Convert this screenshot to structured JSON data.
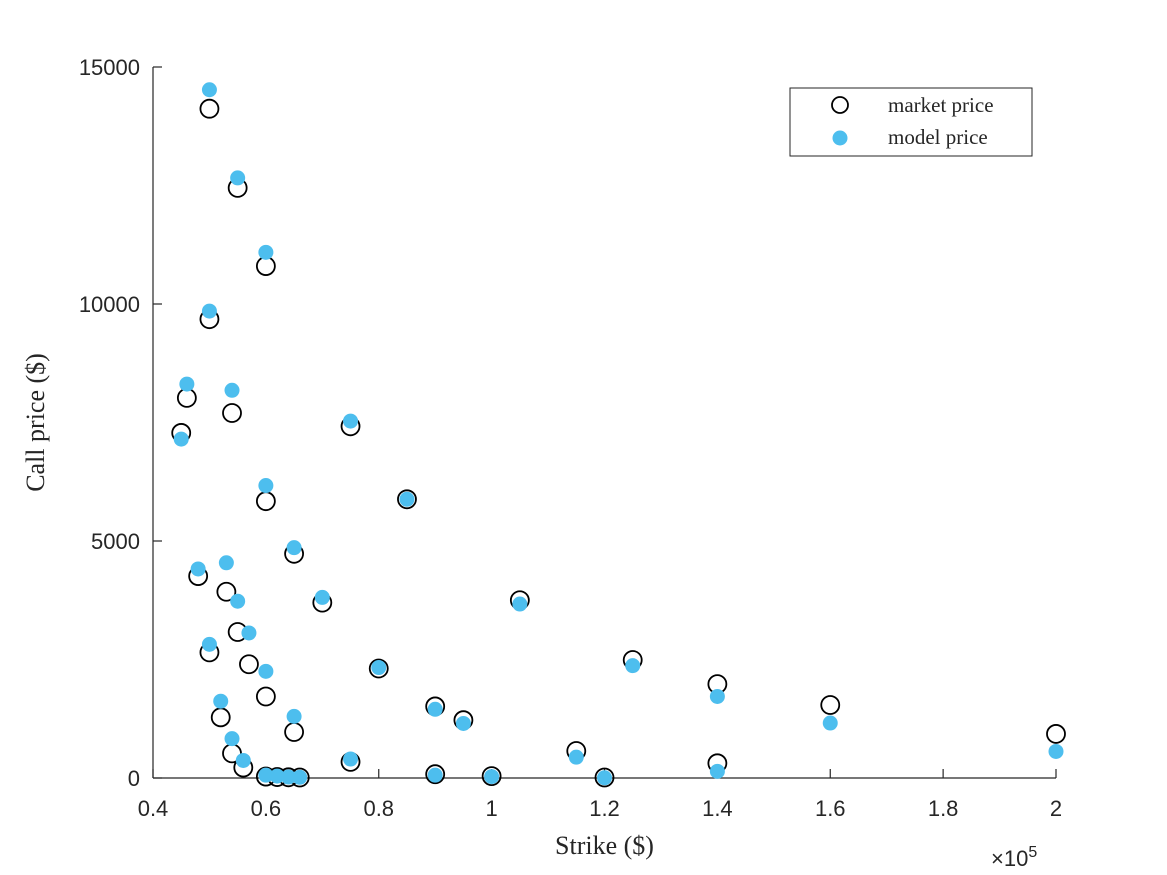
{
  "chart_data": {
    "type": "scatter",
    "title": "",
    "xlabel": "Strike ($)",
    "ylabel": "Call price ($)",
    "x_exponent_label": "×10^5",
    "x_exponent_base": "×10",
    "x_exponent_power": "5",
    "xlim": [
      0.4,
      2.0
    ],
    "ylim": [
      0,
      15000
    ],
    "x_ticks": [
      0.4,
      0.6,
      0.8,
      1.0,
      1.2,
      1.4,
      1.6,
      1.8,
      2.0
    ],
    "x_tick_labels": [
      "0.4",
      "0.6",
      "0.8",
      "1",
      "1.2",
      "1.4",
      "1.6",
      "1.8",
      "2"
    ],
    "y_ticks": [
      0,
      5000,
      10000,
      15000
    ],
    "y_tick_labels": [
      "0",
      "5000",
      "10000",
      "15000"
    ],
    "grid": false,
    "legend_position": "top-right",
    "series": [
      {
        "name": "market price",
        "marker": "open-circle",
        "color": "#000000",
        "points": [
          [
            0.45,
            7280
          ],
          [
            0.46,
            8020
          ],
          [
            0.48,
            4260
          ],
          [
            0.5,
            14120
          ],
          [
            0.5,
            9680
          ],
          [
            0.5,
            2650
          ],
          [
            0.52,
            1280
          ],
          [
            0.53,
            3930
          ],
          [
            0.54,
            7700
          ],
          [
            0.54,
            520
          ],
          [
            0.55,
            12450
          ],
          [
            0.55,
            3080
          ],
          [
            0.56,
            220
          ],
          [
            0.57,
            2400
          ],
          [
            0.6,
            10800
          ],
          [
            0.6,
            5840
          ],
          [
            0.6,
            1720
          ],
          [
            0.6,
            30
          ],
          [
            0.62,
            20
          ],
          [
            0.64,
            15
          ],
          [
            0.65,
            4730
          ],
          [
            0.65,
            970
          ],
          [
            0.66,
            10
          ],
          [
            0.7,
            3700
          ],
          [
            0.75,
            7420
          ],
          [
            0.75,
            340
          ],
          [
            0.8,
            2310
          ],
          [
            0.85,
            5880
          ],
          [
            0.9,
            1510
          ],
          [
            0.9,
            80
          ],
          [
            0.95,
            1220
          ],
          [
            1.0,
            40
          ],
          [
            1.05,
            3750
          ],
          [
            1.15,
            570
          ],
          [
            1.2,
            10
          ],
          [
            1.25,
            2490
          ],
          [
            1.4,
            1980
          ],
          [
            1.4,
            310
          ],
          [
            1.6,
            1540
          ],
          [
            2.0,
            930
          ]
        ]
      },
      {
        "name": "model price",
        "marker": "filled-circle",
        "color": "#4DBEEE",
        "points": [
          [
            0.45,
            7150
          ],
          [
            0.46,
            8310
          ],
          [
            0.48,
            4410
          ],
          [
            0.5,
            14520
          ],
          [
            0.5,
            9850
          ],
          [
            0.5,
            2820
          ],
          [
            0.52,
            1620
          ],
          [
            0.53,
            4540
          ],
          [
            0.54,
            8180
          ],
          [
            0.54,
            830
          ],
          [
            0.55,
            12660
          ],
          [
            0.55,
            3730
          ],
          [
            0.56,
            370
          ],
          [
            0.57,
            3060
          ],
          [
            0.6,
            11090
          ],
          [
            0.6,
            6170
          ],
          [
            0.6,
            2250
          ],
          [
            0.6,
            60
          ],
          [
            0.62,
            40
          ],
          [
            0.64,
            20
          ],
          [
            0.65,
            4860
          ],
          [
            0.65,
            1300
          ],
          [
            0.66,
            15
          ],
          [
            0.7,
            3810
          ],
          [
            0.75,
            7530
          ],
          [
            0.75,
            400
          ],
          [
            0.8,
            2330
          ],
          [
            0.85,
            5880
          ],
          [
            0.9,
            1450
          ],
          [
            0.9,
            60
          ],
          [
            0.95,
            1150
          ],
          [
            1.0,
            30
          ],
          [
            1.05,
            3670
          ],
          [
            1.15,
            440
          ],
          [
            1.2,
            5
          ],
          [
            1.25,
            2370
          ],
          [
            1.4,
            1720
          ],
          [
            1.4,
            140
          ],
          [
            1.6,
            1160
          ],
          [
            2.0,
            560
          ]
        ]
      }
    ]
  }
}
